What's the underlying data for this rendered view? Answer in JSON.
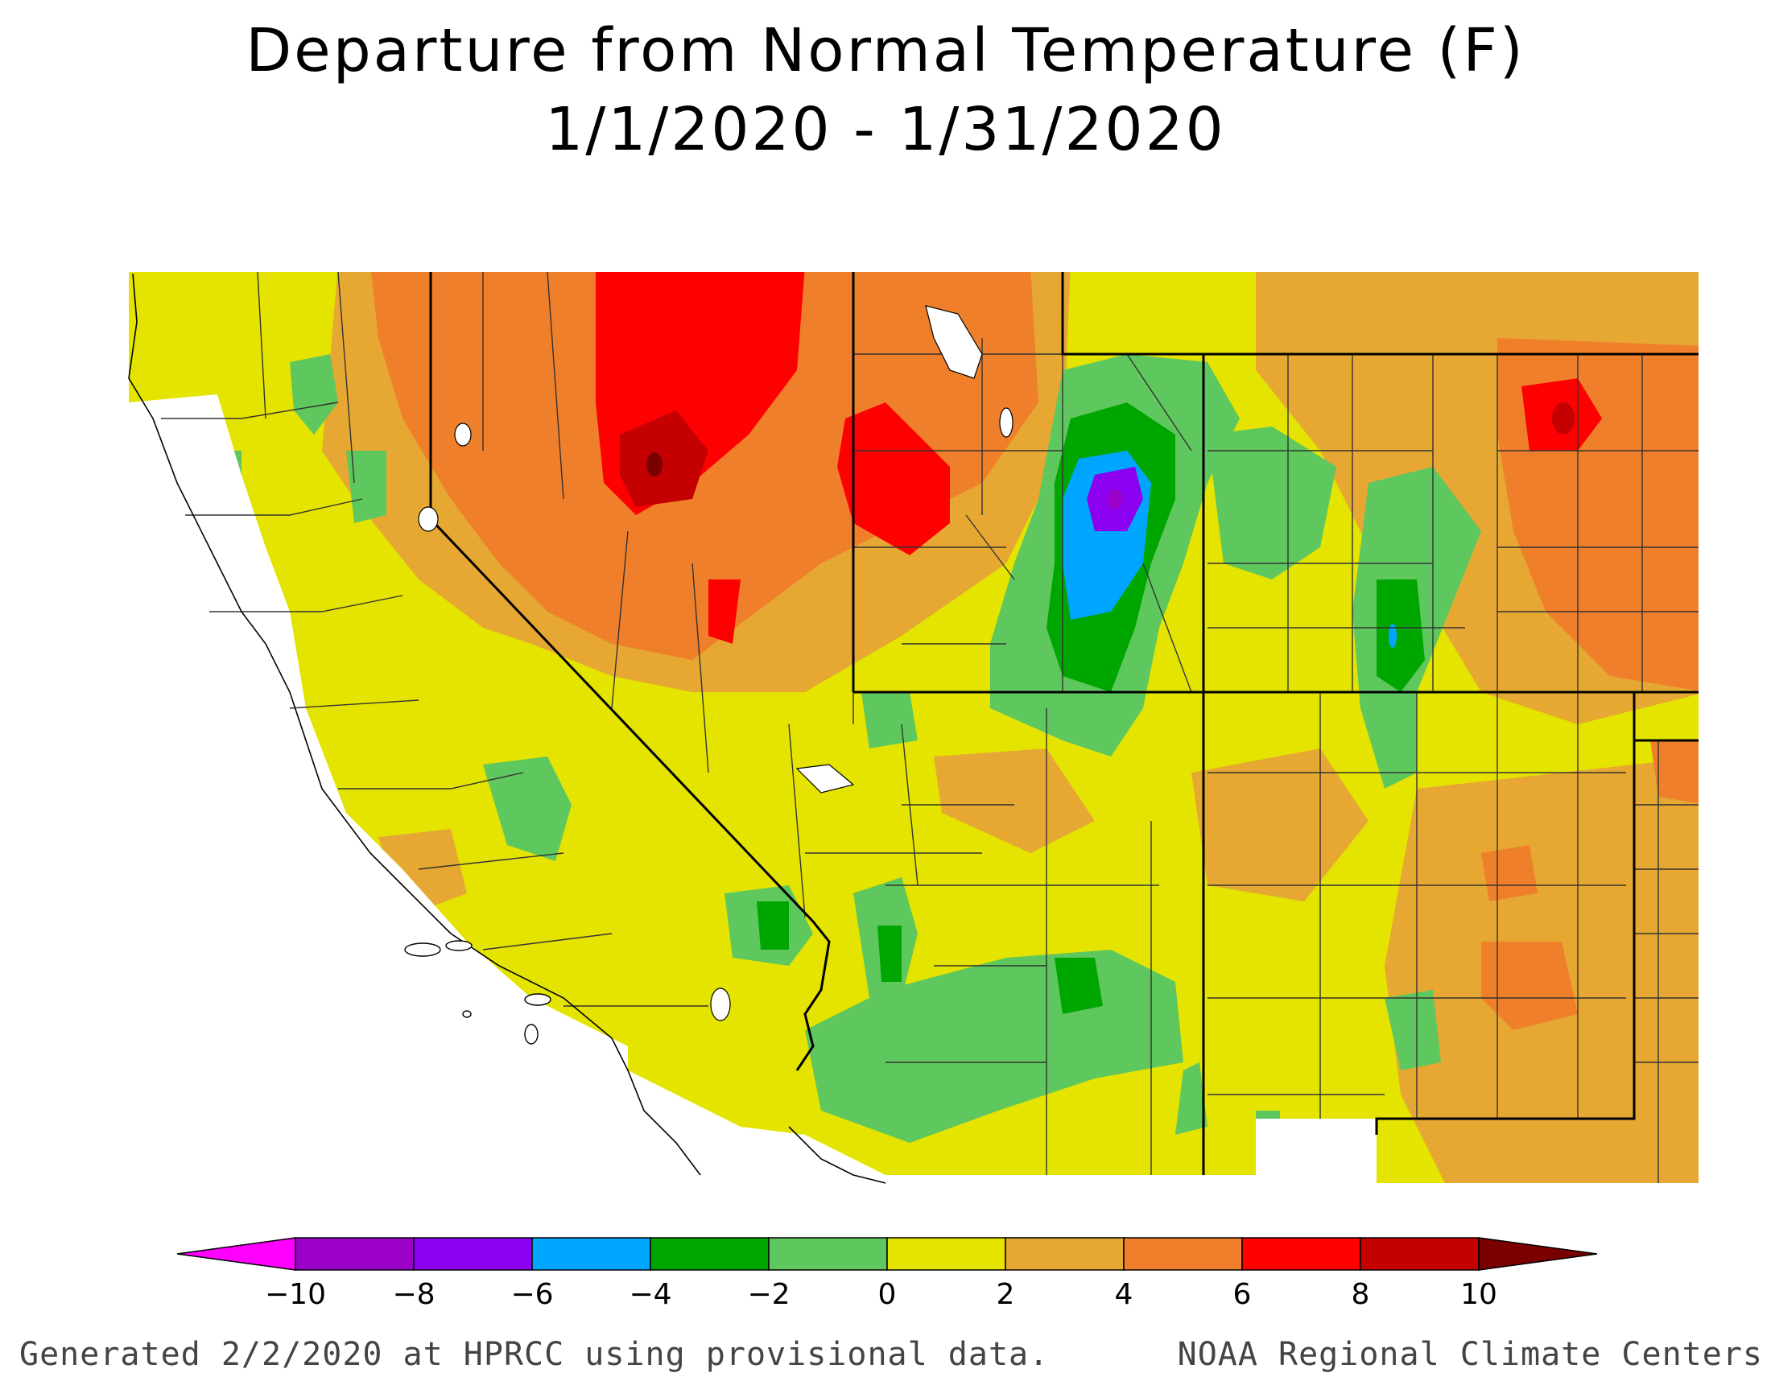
{
  "title": {
    "line1": "Departure from Normal Temperature (F)",
    "line2": "1/1/2020 - 1/31/2020"
  },
  "legend": {
    "bins": [
      {
        "from": -10,
        "to": -8,
        "color": "#9a00c8"
      },
      {
        "from": -8,
        "to": -6,
        "color": "#8b00ee"
      },
      {
        "from": -6,
        "to": -4,
        "color": "#00a5ff"
      },
      {
        "from": -4,
        "to": -2,
        "color": "#00a600"
      },
      {
        "from": -2,
        "to": 0,
        "color": "#5ec75e"
      },
      {
        "from": 0,
        "to": 2,
        "color": "#e4e400"
      },
      {
        "from": 2,
        "to": 4,
        "color": "#e6a832"
      },
      {
        "from": 4,
        "to": 6,
        "color": "#ef7f2a"
      },
      {
        "from": 6,
        "to": 8,
        "color": "#ff0000"
      },
      {
        "from": 8,
        "to": 10,
        "color": "#c40000"
      }
    ],
    "below_color": "#ff00ff",
    "above_color": "#7a0000",
    "ticks": [
      "−10",
      "−8",
      "−6",
      "−4",
      "−2",
      "0",
      "2",
      "4",
      "6",
      "8",
      "10"
    ]
  },
  "footer": {
    "left": "Generated 2/2/2020 at HPRCC using provisional data.",
    "right": "NOAA Regional Climate Centers"
  }
}
